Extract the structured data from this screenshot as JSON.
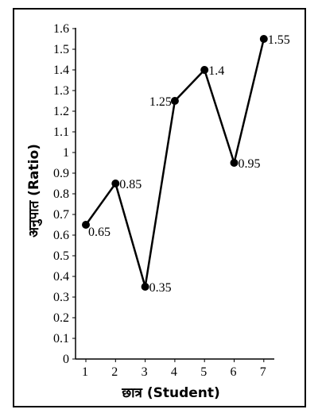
{
  "chart_data": {
    "type": "line",
    "xlabel": "छात्र (Student)",
    "ylabel": "अनुपात (Ratio)",
    "x": [
      1,
      2,
      3,
      4,
      5,
      6,
      7
    ],
    "xlim": [
      0.5,
      7.3
    ],
    "ylim": [
      0,
      1.6
    ],
    "yticks": [
      0,
      0.1,
      0.2,
      0.3,
      0.4,
      0.5,
      0.6,
      0.7,
      0.8,
      0.9,
      1,
      1.1,
      1.2,
      1.3,
      1.4,
      1.5,
      1.6
    ],
    "ytick_labels": [
      "0",
      "0.1",
      "0.2",
      "0.3",
      "0.4",
      "0.5",
      "0.6",
      "0.7",
      "0.8",
      "0.9",
      "1",
      "1.1",
      "1.2",
      "1.3",
      "1.4",
      "1.5",
      "1.6"
    ],
    "xtick_labels": [
      "1",
      "2",
      "3",
      "4",
      "5",
      "6",
      "7"
    ],
    "grid": false,
    "series": [
      {
        "values": [
          0.65,
          0.85,
          0.35,
          1.25,
          1.4,
          0.95,
          1.55
        ],
        "data_labels": [
          "0.65",
          "0.85",
          "0.35",
          "1.25",
          "1.4",
          "0.95",
          "1.55"
        ],
        "label_positions": [
          "below-right",
          "right",
          "right",
          "left",
          "right",
          "right",
          "right"
        ],
        "color": "#000000",
        "marker": "circle"
      }
    ]
  }
}
